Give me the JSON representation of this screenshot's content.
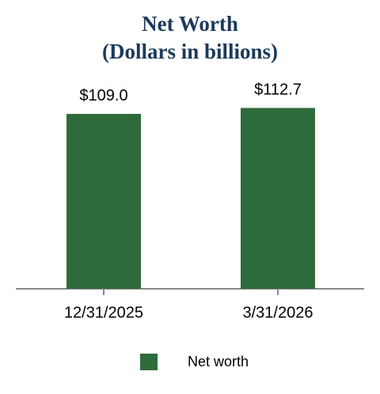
{
  "chart_data": {
    "type": "bar",
    "title": "Net Worth",
    "subtitle": "(Dollars in billions)",
    "categories": [
      "12/31/2025",
      "3/31/2026"
    ],
    "series": [
      {
        "name": "Net worth",
        "color": "#2e6b3a",
        "values": [
          109.0,
          112.7
        ],
        "value_labels": [
          "$109.0",
          "$112.7"
        ]
      }
    ],
    "legend": "bottom"
  }
}
